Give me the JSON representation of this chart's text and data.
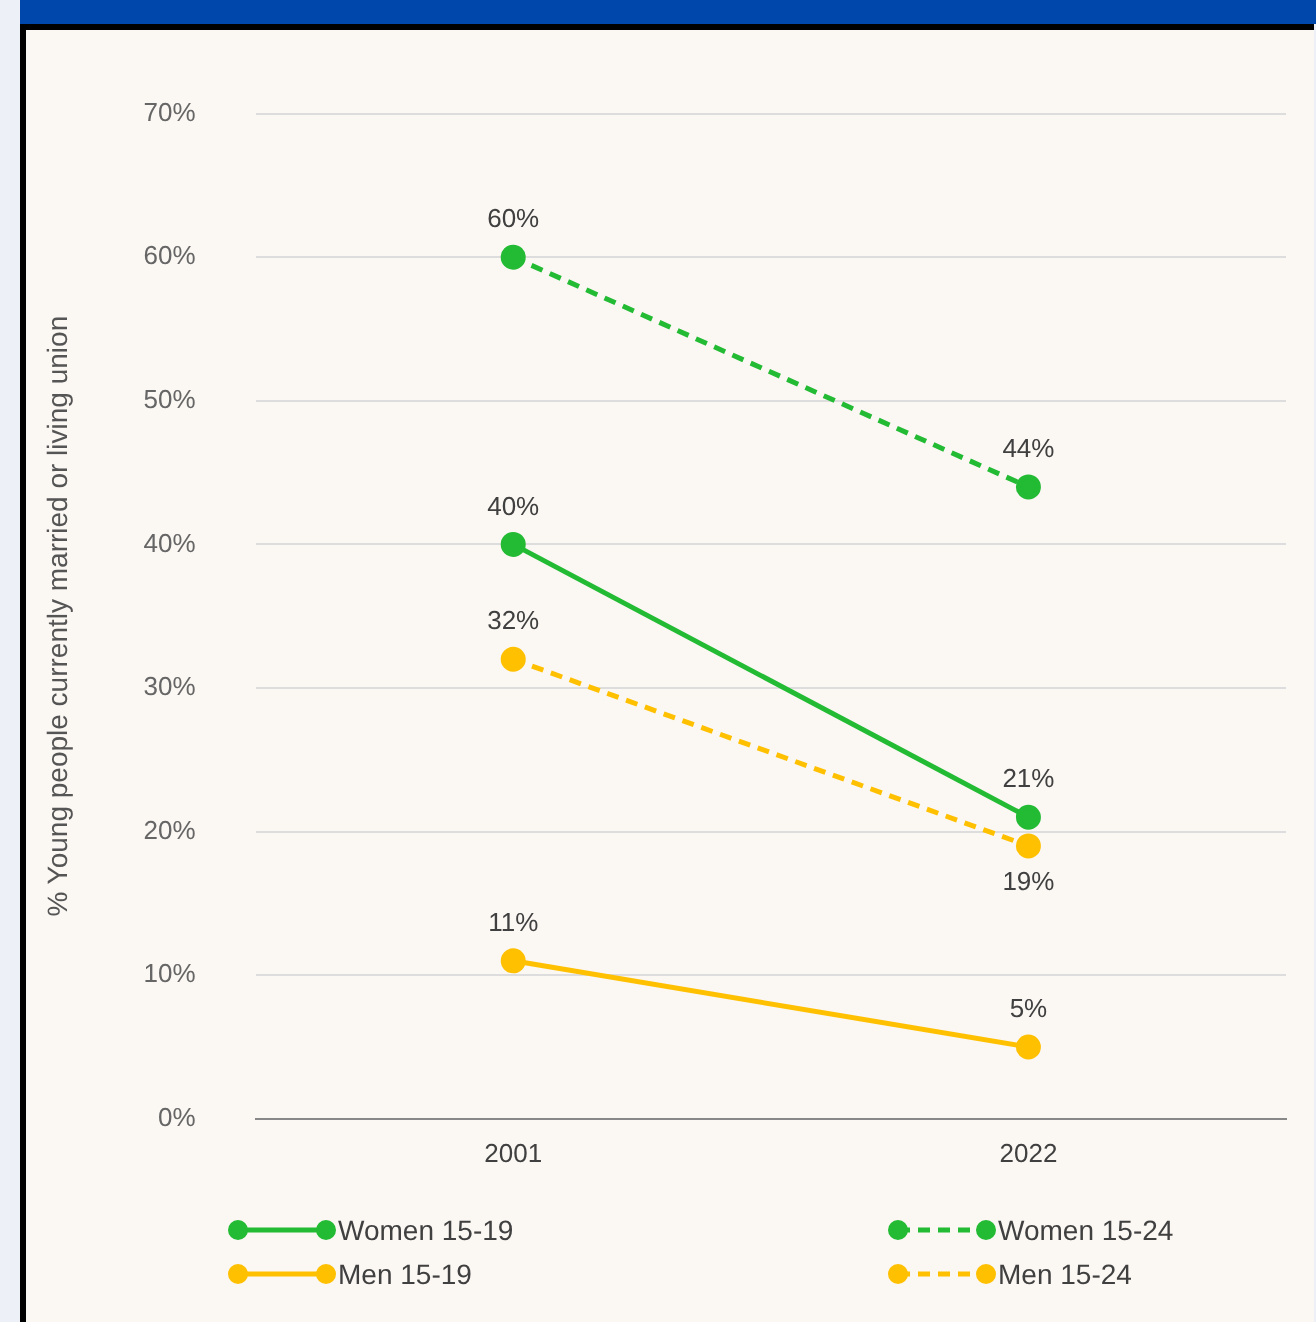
{
  "chart_data": {
    "type": "line",
    "ylabel": "% Young people currently married or living union",
    "categories": [
      "2001",
      "2022"
    ],
    "series": [
      {
        "name": "Women 15-19",
        "color": "#22bb33",
        "values": [
          40,
          21
        ],
        "value_labels": [
          "40%",
          "21%"
        ],
        "line_style": "solid"
      },
      {
        "name": "Women 15-24",
        "color": "#22bb33",
        "values": [
          60,
          44
        ],
        "value_labels": [
          "60%",
          "44%"
        ],
        "line_style": "dashed"
      },
      {
        "name": "Men 15-19",
        "color": "#ffc000",
        "values": [
          11,
          5
        ],
        "value_labels": [
          "11%",
          "5%"
        ],
        "line_style": "solid"
      },
      {
        "name": "Men 15-24",
        "color": "#ffc000",
        "values": [
          32,
          19
        ],
        "value_labels": [
          "32%",
          "19%"
        ],
        "line_style": "dashed"
      }
    ],
    "ylim": [
      0,
      70
    ],
    "yticks": [
      {
        "value": 0,
        "label": "0%"
      },
      {
        "value": 10,
        "label": "10%"
      },
      {
        "value": 20,
        "label": "20%"
      },
      {
        "value": 30,
        "label": "30%"
      },
      {
        "value": 40,
        "label": "40%"
      },
      {
        "value": 50,
        "label": "50%"
      },
      {
        "value": 60,
        "label": "60%"
      },
      {
        "value": 70,
        "label": "70%"
      }
    ],
    "grid": "y",
    "legend": "bottom",
    "marker": "circle"
  }
}
